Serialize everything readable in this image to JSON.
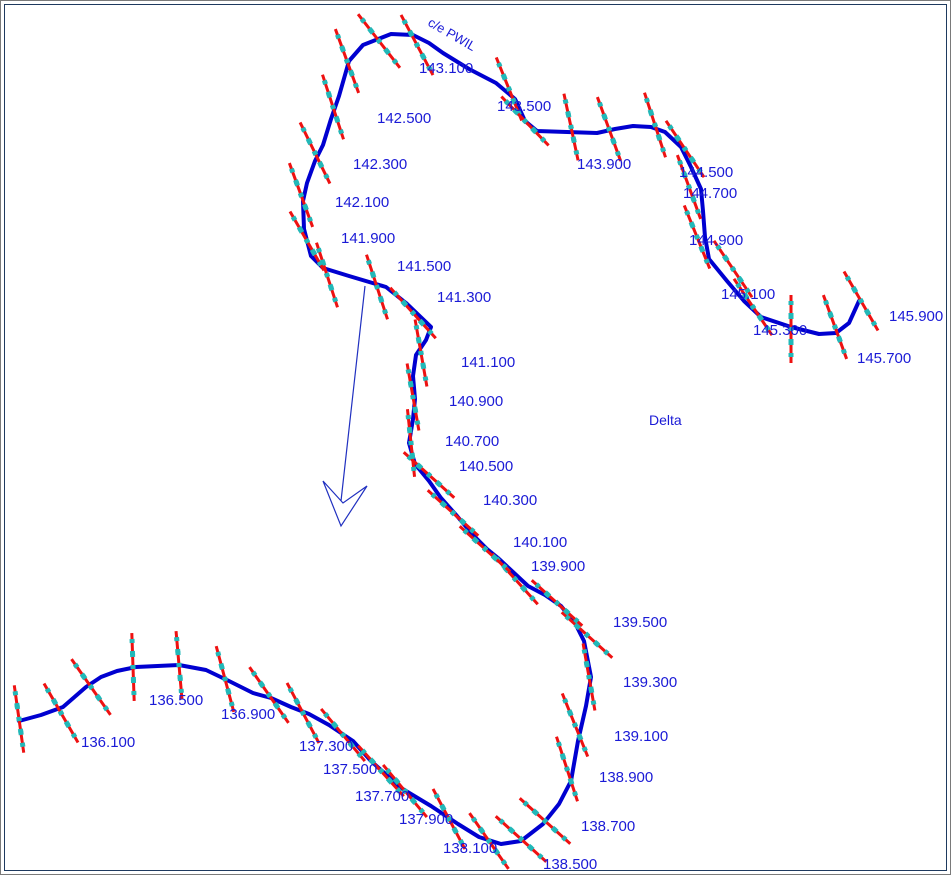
{
  "diagram": {
    "centerline_label": "c/e PWIL",
    "region_label": "Delta",
    "colors": {
      "centerline": "#0000d0",
      "section_line": "#ee1111",
      "section_tick": "#22b8b8",
      "label_text": "#1a1ad6",
      "flow_arrow": "#2030c0"
    },
    "stations": [
      {
        "label": "136.100"
      },
      {
        "label": "136.500"
      },
      {
        "label": "136.900"
      },
      {
        "label": "137.300"
      },
      {
        "label": "137.500"
      },
      {
        "label": "137.700"
      },
      {
        "label": "137.900"
      },
      {
        "label": "138.100"
      },
      {
        "label": "138.500"
      },
      {
        "label": "138.700"
      },
      {
        "label": "138.900"
      },
      {
        "label": "139.100"
      },
      {
        "label": "139.300"
      },
      {
        "label": "139.500"
      },
      {
        "label": "139.900"
      },
      {
        "label": "140.100"
      },
      {
        "label": "140.300"
      },
      {
        "label": "140.500"
      },
      {
        "label": "140.700"
      },
      {
        "label": "140.900"
      },
      {
        "label": "141.100"
      },
      {
        "label": "141.300"
      },
      {
        "label": "141.500"
      },
      {
        "label": "141.900"
      },
      {
        "label": "142.100"
      },
      {
        "label": "142.300"
      },
      {
        "label": "142.500"
      },
      {
        "label": "143.100"
      },
      {
        "label": "143.500"
      },
      {
        "label": "143.900"
      },
      {
        "label": "144.500"
      },
      {
        "label": "144.700"
      },
      {
        "label": "144.900"
      },
      {
        "label": "145.100"
      },
      {
        "label": "145.300"
      },
      {
        "label": "145.700"
      },
      {
        "label": "145.900"
      }
    ]
  }
}
